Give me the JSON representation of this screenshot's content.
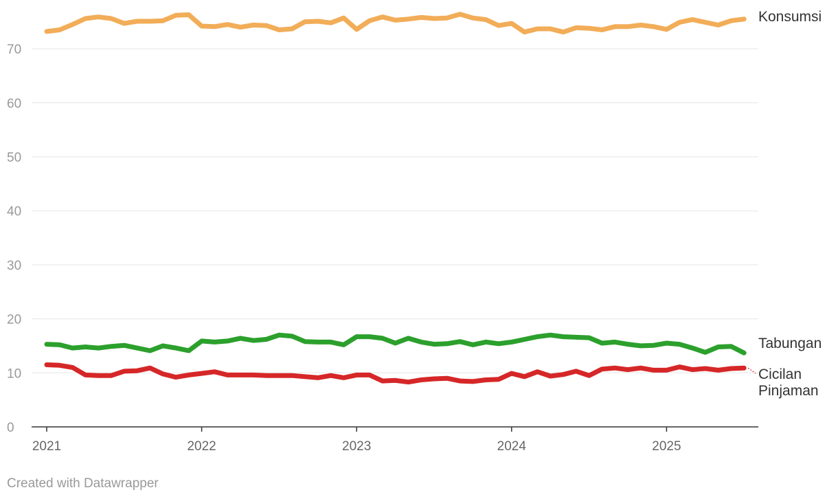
{
  "credit": "Created with Datawrapper",
  "chart_data": {
    "type": "line",
    "title": "",
    "xlabel": "",
    "ylabel": "",
    "ylim": [
      0,
      77
    ],
    "yticks": [
      0,
      10,
      20,
      30,
      40,
      50,
      60,
      70
    ],
    "xlim": [
      "2021-01",
      "2025-07"
    ],
    "xticks": [
      "2021",
      "2022",
      "2023",
      "2024",
      "2025"
    ],
    "grid": true,
    "legend": "direct labels at right end of lines",
    "x": [
      "2021-01",
      "2021-02",
      "2021-03",
      "2021-04",
      "2021-05",
      "2021-06",
      "2021-07",
      "2021-08",
      "2021-09",
      "2021-10",
      "2021-11",
      "2021-12",
      "2022-01",
      "2022-02",
      "2022-03",
      "2022-04",
      "2022-05",
      "2022-06",
      "2022-07",
      "2022-08",
      "2022-09",
      "2022-10",
      "2022-11",
      "2022-12",
      "2023-01",
      "2023-02",
      "2023-03",
      "2023-04",
      "2023-05",
      "2023-06",
      "2023-07",
      "2023-08",
      "2023-09",
      "2023-10",
      "2023-11",
      "2023-12",
      "2024-01",
      "2024-02",
      "2024-03",
      "2024-04",
      "2024-05",
      "2024-06",
      "2024-07",
      "2024-08",
      "2024-09",
      "2024-10",
      "2024-11",
      "2024-12",
      "2025-01",
      "2025-02",
      "2025-03",
      "2025-04",
      "2025-05",
      "2025-06",
      "2025-07"
    ],
    "series": [
      {
        "name": "Konsumsi",
        "color": "#f2ad58",
        "values": [
          73.2,
          73.5,
          74.5,
          75.6,
          75.9,
          75.6,
          74.7,
          75.1,
          75.1,
          75.2,
          76.2,
          76.3,
          74.2,
          74.1,
          74.5,
          74.0,
          74.4,
          74.3,
          73.5,
          73.7,
          75.0,
          75.1,
          74.8,
          75.7,
          73.6,
          75.2,
          75.9,
          75.3,
          75.5,
          75.8,
          75.6,
          75.7,
          76.4,
          75.7,
          75.4,
          74.3,
          74.7,
          73.1,
          73.7,
          73.7,
          73.1,
          73.9,
          73.8,
          73.5,
          74.1,
          74.1,
          74.4,
          74.1,
          73.6,
          74.9,
          75.4,
          74.9,
          74.4,
          75.2,
          75.5
        ]
      },
      {
        "name": "Tabungan",
        "color": "#2ca02c",
        "values": [
          15.3,
          15.2,
          14.6,
          14.8,
          14.6,
          14.9,
          15.1,
          14.6,
          14.1,
          15.0,
          14.6,
          14.1,
          15.9,
          15.7,
          15.9,
          16.4,
          16.0,
          16.2,
          17.0,
          16.8,
          15.8,
          15.7,
          15.7,
          15.2,
          16.7,
          16.7,
          16.4,
          15.5,
          16.4,
          15.7,
          15.3,
          15.4,
          15.8,
          15.2,
          15.7,
          15.4,
          15.7,
          16.2,
          16.7,
          17.0,
          16.7,
          16.6,
          16.5,
          15.5,
          15.7,
          15.3,
          15.0,
          15.1,
          15.5,
          15.3,
          14.6,
          13.8,
          14.8,
          14.9,
          13.7
        ]
      },
      {
        "name": "Cicilan\nPinjaman",
        "color": "#d62728",
        "values": [
          11.5,
          11.4,
          11.0,
          9.6,
          9.5,
          9.5,
          10.3,
          10.4,
          10.9,
          9.8,
          9.2,
          9.6,
          9.9,
          10.2,
          9.6,
          9.6,
          9.6,
          9.5,
          9.5,
          9.5,
          9.3,
          9.1,
          9.5,
          9.1,
          9.6,
          9.6,
          8.5,
          8.6,
          8.3,
          8.7,
          8.9,
          9.0,
          8.5,
          8.4,
          8.7,
          8.8,
          9.9,
          9.3,
          10.2,
          9.4,
          9.7,
          10.3,
          9.5,
          10.7,
          10.9,
          10.6,
          10.9,
          10.5,
          10.5,
          11.1,
          10.6,
          10.8,
          10.5,
          10.8,
          10.9
        ]
      }
    ]
  }
}
